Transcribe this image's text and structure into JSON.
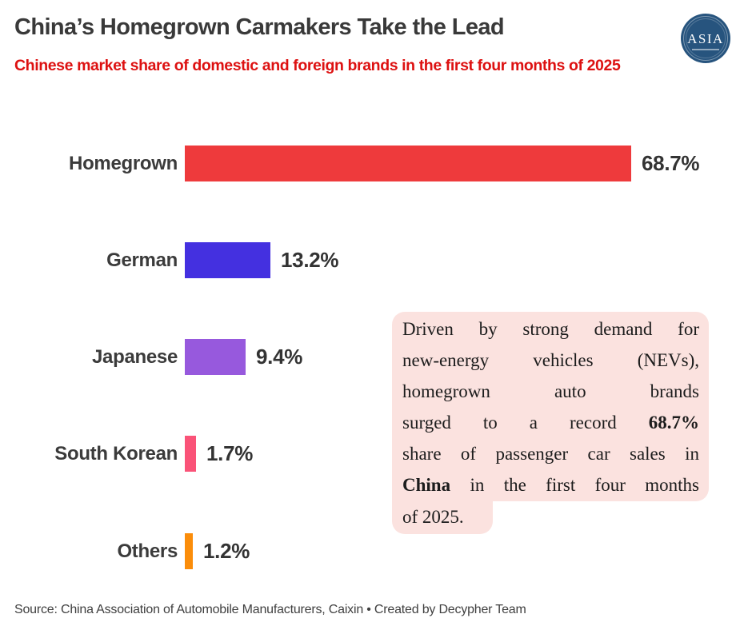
{
  "chart_data": {
    "type": "bar",
    "orientation": "horizontal",
    "title": "China’s Homegrown Carmakers Take the Lead",
    "subtitle": "Chinese market share of domestic and foreign brands in the first four months of 2025",
    "categories": [
      "Homegrown",
      "German",
      "Japanese",
      "South Korean",
      "Others"
    ],
    "values": [
      68.7,
      13.2,
      9.4,
      1.7,
      1.2
    ],
    "value_labels": [
      "68.7%",
      "13.2%",
      "9.4%",
      "1.7%",
      "1.2%"
    ],
    "colors": [
      "#ee3a3c",
      "#4430e0",
      "#9759dd",
      "#fa5378",
      "#fb8d0a"
    ],
    "xlim": [
      0,
      70
    ],
    "grid": false,
    "legend": "none",
    "value_label_position": "end-of-bar"
  },
  "logo": {
    "text": "ASIA"
  },
  "note": {
    "background": "#fbe2df",
    "lines": [
      {
        "pre": "Driven by strong demand for",
        "bold": "",
        "post": ""
      },
      {
        "pre": "new-energy vehicles (NEVs),",
        "bold": "",
        "post": ""
      },
      {
        "pre": "homegrown auto brands",
        "bold": "",
        "post": ""
      },
      {
        "pre": "surged to a record ",
        "bold": "68.7%",
        "post": ""
      },
      {
        "pre": "share of passenger car sales in",
        "bold": "",
        "post": ""
      },
      {
        "pre": "",
        "bold": "China",
        "post": " in the first four months"
      },
      {
        "pre": "of 2025.",
        "bold": "",
        "post": ""
      }
    ]
  },
  "footer": {
    "source": "Source: China Association of Automobile Manufacturers, Caixin • Created by Decypher Team"
  }
}
